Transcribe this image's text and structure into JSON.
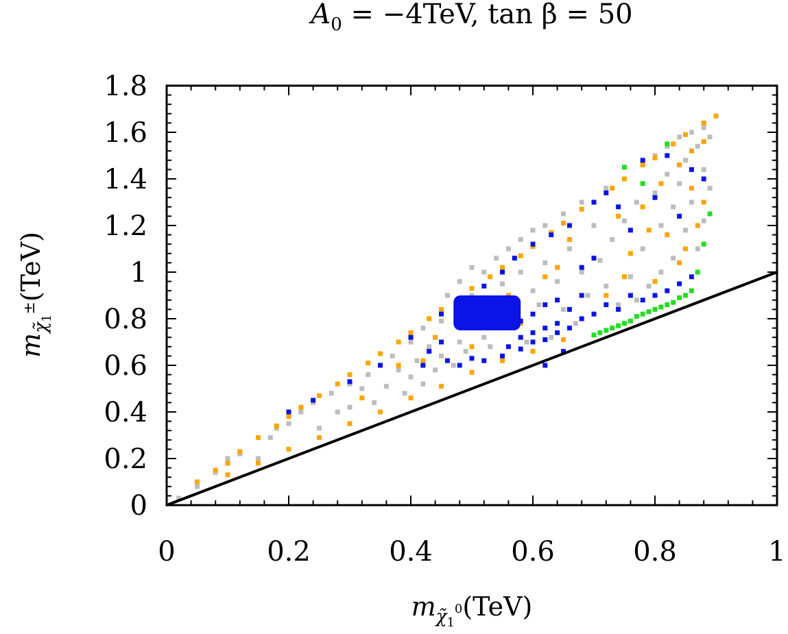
{
  "chart_data": {
    "type": "scatter",
    "title": "A0 = -4TeV, tan β = 50",
    "title_parts": {
      "a": "A",
      "a_sub": "0",
      "rest": " = −4TeV, tan β = 50"
    },
    "xlabel": "m_χ̃₁⁰(TeV)",
    "xlabel_parts": {
      "m": "m",
      "sub": "χ̃",
      "subsub": "1",
      "sup": "0",
      "unit": "(TeV)"
    },
    "ylabel": "m_χ̃₁±(TeV)",
    "ylabel_parts": {
      "m": "m",
      "sub": "χ̃",
      "subsub": "1",
      "sup": "±",
      "unit": "(TeV)"
    },
    "xlim": [
      0,
      1
    ],
    "ylim": [
      0,
      1.8
    ],
    "xticks": [
      0,
      0.2,
      0.4,
      0.6,
      0.8,
      1
    ],
    "xtick_labels": [
      "0",
      "0.2",
      "0.4",
      "0.6",
      "0.8",
      "1"
    ],
    "yticks": [
      0,
      0.2,
      0.4,
      0.6,
      0.8,
      1,
      1.2,
      1.4,
      1.6,
      1.8
    ],
    "ytick_labels": [
      "0",
      "0.2",
      "0.4",
      "0.6",
      "0.8",
      "1",
      "1.2",
      "1.4",
      "1.6",
      "1.8"
    ],
    "grid": false,
    "colors": {
      "gray": "#bdbdbd",
      "orange": "#ffa500",
      "blue": "#0a14e6",
      "green": "#22dd22",
      "line": "#000000"
    },
    "reference_line": {
      "name": "m_chargino = m_neutralino",
      "x": [
        0,
        1
      ],
      "y": [
        0,
        1
      ]
    },
    "series": [
      {
        "name": "gray",
        "color": "#bdbdbd",
        "points": [
          [
            0.02,
            0.03
          ],
          [
            0.05,
            0.08
          ],
          [
            0.08,
            0.14
          ],
          [
            0.1,
            0.2
          ],
          [
            0.12,
            0.22
          ],
          [
            0.15,
            0.2
          ],
          [
            0.17,
            0.29
          ],
          [
            0.18,
            0.33
          ],
          [
            0.2,
            0.35
          ],
          [
            0.22,
            0.4
          ],
          [
            0.24,
            0.44
          ],
          [
            0.25,
            0.33
          ],
          [
            0.27,
            0.48
          ],
          [
            0.28,
            0.4
          ],
          [
            0.3,
            0.52
          ],
          [
            0.3,
            0.42
          ],
          [
            0.32,
            0.5
          ],
          [
            0.33,
            0.56
          ],
          [
            0.34,
            0.44
          ],
          [
            0.35,
            0.6
          ],
          [
            0.36,
            0.51
          ],
          [
            0.37,
            0.64
          ],
          [
            0.38,
            0.58
          ],
          [
            0.39,
            0.48
          ],
          [
            0.4,
            0.7
          ],
          [
            0.4,
            0.55
          ],
          [
            0.41,
            0.62
          ],
          [
            0.42,
            0.76
          ],
          [
            0.42,
            0.52
          ],
          [
            0.43,
            0.68
          ],
          [
            0.44,
            0.58
          ],
          [
            0.45,
            0.79
          ],
          [
            0.45,
            0.64
          ],
          [
            0.46,
            0.9
          ],
          [
            0.47,
            0.6
          ],
          [
            0.48,
            0.96
          ],
          [
            0.48,
            0.7
          ],
          [
            0.49,
            0.66
          ],
          [
            0.5,
            1.02
          ],
          [
            0.5,
            0.9
          ],
          [
            0.52,
            1.0
          ],
          [
            0.52,
            0.72
          ],
          [
            0.53,
            0.68
          ],
          [
            0.54,
            1.06
          ],
          [
            0.55,
            0.95
          ],
          [
            0.56,
            1.1
          ],
          [
            0.57,
            0.78
          ],
          [
            0.58,
            1.0
          ],
          [
            0.58,
            1.14
          ],
          [
            0.59,
            0.7
          ],
          [
            0.6,
            1.18
          ],
          [
            0.6,
            0.92
          ],
          [
            0.61,
            0.86
          ],
          [
            0.62,
            1.2
          ],
          [
            0.62,
            1.04
          ],
          [
            0.63,
            0.72
          ],
          [
            0.64,
            0.96
          ],
          [
            0.65,
            1.25
          ],
          [
            0.65,
            0.84
          ],
          [
            0.66,
            1.1
          ],
          [
            0.67,
            0.78
          ],
          [
            0.68,
            1.3
          ],
          [
            0.68,
            1.0
          ],
          [
            0.69,
            0.9
          ],
          [
            0.7,
            1.2
          ],
          [
            0.7,
            0.82
          ],
          [
            0.71,
            1.05
          ],
          [
            0.72,
            1.36
          ],
          [
            0.72,
            0.94
          ],
          [
            0.73,
            1.14
          ],
          [
            0.74,
            0.86
          ],
          [
            0.75,
            1.4
          ],
          [
            0.75,
            1.22
          ],
          [
            0.76,
            0.98
          ],
          [
            0.77,
            1.3
          ],
          [
            0.77,
            0.88
          ],
          [
            0.78,
            1.46
          ],
          [
            0.78,
            1.1
          ],
          [
            0.79,
            0.94
          ],
          [
            0.8,
            1.5
          ],
          [
            0.8,
            1.34
          ],
          [
            0.81,
            1.2
          ],
          [
            0.81,
            1.0
          ],
          [
            0.82,
            1.54
          ],
          [
            0.82,
            1.42
          ],
          [
            0.83,
            1.28
          ],
          [
            0.83,
            1.06
          ],
          [
            0.84,
            1.58
          ],
          [
            0.84,
            1.38
          ],
          [
            0.85,
            1.48
          ],
          [
            0.85,
            1.18
          ],
          [
            0.86,
            1.6
          ],
          [
            0.86,
            1.3
          ],
          [
            0.87,
            1.54
          ],
          [
            0.87,
            1.1
          ],
          [
            0.88,
            1.62
          ],
          [
            0.88,
            1.44
          ],
          [
            0.88,
            1.22
          ],
          [
            0.89,
            1.58
          ],
          [
            0.89,
            1.36
          ]
        ]
      },
      {
        "name": "orange",
        "color": "#ffa500",
        "points": [
          [
            0.05,
            0.1
          ],
          [
            0.08,
            0.15
          ],
          [
            0.1,
            0.18
          ],
          [
            0.12,
            0.23
          ],
          [
            0.15,
            0.29
          ],
          [
            0.18,
            0.34
          ],
          [
            0.2,
            0.38
          ],
          [
            0.22,
            0.42
          ],
          [
            0.25,
            0.47
          ],
          [
            0.28,
            0.52
          ],
          [
            0.3,
            0.56
          ],
          [
            0.33,
            0.61
          ],
          [
            0.35,
            0.65
          ],
          [
            0.38,
            0.7
          ],
          [
            0.4,
            0.74
          ],
          [
            0.43,
            0.8
          ],
          [
            0.45,
            0.84
          ],
          [
            0.48,
            0.88
          ],
          [
            0.5,
            0.93
          ],
          [
            0.53,
            0.98
          ],
          [
            0.55,
            1.02
          ],
          [
            0.58,
            1.07
          ],
          [
            0.6,
            1.11
          ],
          [
            0.63,
            1.17
          ],
          [
            0.65,
            1.21
          ],
          [
            0.68,
            1.27
          ],
          [
            0.7,
            1.3
          ],
          [
            0.73,
            1.36
          ],
          [
            0.75,
            1.4
          ],
          [
            0.78,
            1.46
          ],
          [
            0.8,
            1.49
          ],
          [
            0.83,
            1.55
          ],
          [
            0.85,
            1.59
          ],
          [
            0.88,
            1.64
          ],
          [
            0.9,
            1.67
          ],
          [
            0.1,
            0.13
          ],
          [
            0.15,
            0.18
          ],
          [
            0.2,
            0.24
          ],
          [
            0.25,
            0.29
          ],
          [
            0.3,
            0.35
          ],
          [
            0.35,
            0.4
          ],
          [
            0.4,
            0.46
          ],
          [
            0.45,
            0.51
          ],
          [
            0.5,
            0.57
          ],
          [
            0.55,
            0.62
          ],
          [
            0.6,
            0.66
          ],
          [
            0.65,
            0.71
          ],
          [
            0.42,
            0.62
          ],
          [
            0.5,
            0.68
          ],
          [
            0.58,
            0.78
          ],
          [
            0.62,
            0.98
          ],
          [
            0.66,
            1.14
          ],
          [
            0.7,
            1.06
          ],
          [
            0.72,
            0.9
          ],
          [
            0.74,
            1.24
          ],
          [
            0.76,
            1.08
          ],
          [
            0.78,
            1.28
          ],
          [
            0.8,
            0.96
          ],
          [
            0.81,
            1.38
          ],
          [
            0.82,
            1.16
          ],
          [
            0.84,
            1.46
          ],
          [
            0.84,
            1.04
          ],
          [
            0.86,
            1.36
          ],
          [
            0.86,
            1.52
          ],
          [
            0.87,
            1.2
          ],
          [
            0.88,
            1.56
          ],
          [
            0.88,
            1.3
          ],
          [
            0.85,
            1.1
          ],
          [
            0.79,
            1.18
          ],
          [
            0.75,
            0.98
          ],
          [
            0.68,
            0.9
          ],
          [
            0.64,
            1.02
          ],
          [
            0.56,
            0.9
          ],
          [
            0.44,
            0.72
          ],
          [
            0.38,
            0.6
          ],
          [
            0.32,
            0.46
          ]
        ]
      },
      {
        "name": "blue",
        "color": "#0a14e6",
        "points": [
          [
            0.2,
            0.4
          ],
          [
            0.24,
            0.45
          ],
          [
            0.3,
            0.53
          ],
          [
            0.35,
            0.6
          ],
          [
            0.4,
            0.72
          ],
          [
            0.45,
            0.82
          ],
          [
            0.48,
            0.87
          ],
          [
            0.52,
            0.94
          ],
          [
            0.55,
            1.0
          ],
          [
            0.57,
            1.06
          ],
          [
            0.6,
            1.12
          ],
          [
            0.63,
            1.16
          ],
          [
            0.7,
            1.3
          ],
          [
            0.72,
            1.34
          ],
          [
            0.78,
            1.48
          ],
          [
            0.82,
            1.5
          ],
          [
            0.42,
            0.6
          ],
          [
            0.46,
            0.62
          ],
          [
            0.48,
            0.6
          ],
          [
            0.5,
            0.63
          ],
          [
            0.52,
            0.62
          ],
          [
            0.55,
            0.64
          ],
          [
            0.58,
            0.67
          ],
          [
            0.6,
            0.7
          ],
          [
            0.62,
            0.71
          ],
          [
            0.64,
            0.74
          ],
          [
            0.66,
            0.76
          ],
          [
            0.68,
            0.8
          ],
          [
            0.56,
            0.68
          ],
          [
            0.58,
            0.72
          ],
          [
            0.6,
            0.74
          ],
          [
            0.62,
            0.76
          ],
          [
            0.64,
            0.78
          ],
          [
            0.56,
            0.77
          ],
          [
            0.58,
            0.79
          ],
          [
            0.6,
            0.82
          ],
          [
            0.62,
            0.86
          ],
          [
            0.64,
            0.88
          ],
          [
            0.66,
            0.84
          ],
          [
            0.68,
            0.9
          ],
          [
            0.7,
            0.82
          ],
          [
            0.72,
            0.86
          ],
          [
            0.74,
            0.84
          ],
          [
            0.76,
            0.9
          ],
          [
            0.78,
            0.88
          ],
          [
            0.8,
            0.9
          ],
          [
            0.82,
            0.92
          ],
          [
            0.84,
            0.95
          ],
          [
            0.86,
            0.98
          ],
          [
            0.66,
            1.2
          ],
          [
            0.68,
            1.02
          ],
          [
            0.7,
            1.06
          ],
          [
            0.74,
            1.28
          ],
          [
            0.76,
            1.18
          ],
          [
            0.8,
            1.32
          ],
          [
            0.84,
            1.24
          ],
          [
            0.86,
            1.44
          ],
          [
            0.88,
            1.4
          ],
          [
            0.43,
            0.66
          ],
          [
            0.45,
            0.7
          ],
          [
            0.62,
            0.6
          ],
          [
            0.65,
            0.66
          ]
        ]
      },
      {
        "name": "blue-cluster",
        "color": "#0a14e6",
        "rect": {
          "x": [
            0.47,
            0.58
          ],
          "y": [
            0.75,
            0.9
          ]
        }
      },
      {
        "name": "green",
        "color": "#22dd22",
        "points": [
          [
            0.7,
            0.73
          ],
          [
            0.72,
            0.75
          ],
          [
            0.74,
            0.77
          ],
          [
            0.76,
            0.79
          ],
          [
            0.78,
            0.82
          ],
          [
            0.8,
            0.84
          ],
          [
            0.82,
            0.86
          ],
          [
            0.84,
            0.89
          ],
          [
            0.86,
            0.92
          ],
          [
            0.87,
            1.0
          ],
          [
            0.88,
            1.12
          ],
          [
            0.89,
            1.25
          ],
          [
            0.82,
            1.55
          ],
          [
            0.75,
            1.45
          ],
          [
            0.78,
            1.38
          ],
          [
            0.71,
            0.74
          ],
          [
            0.73,
            0.76
          ],
          [
            0.75,
            0.78
          ],
          [
            0.77,
            0.81
          ],
          [
            0.79,
            0.83
          ],
          [
            0.81,
            0.85
          ],
          [
            0.83,
            0.87
          ],
          [
            0.85,
            0.9
          ]
        ]
      }
    ]
  }
}
